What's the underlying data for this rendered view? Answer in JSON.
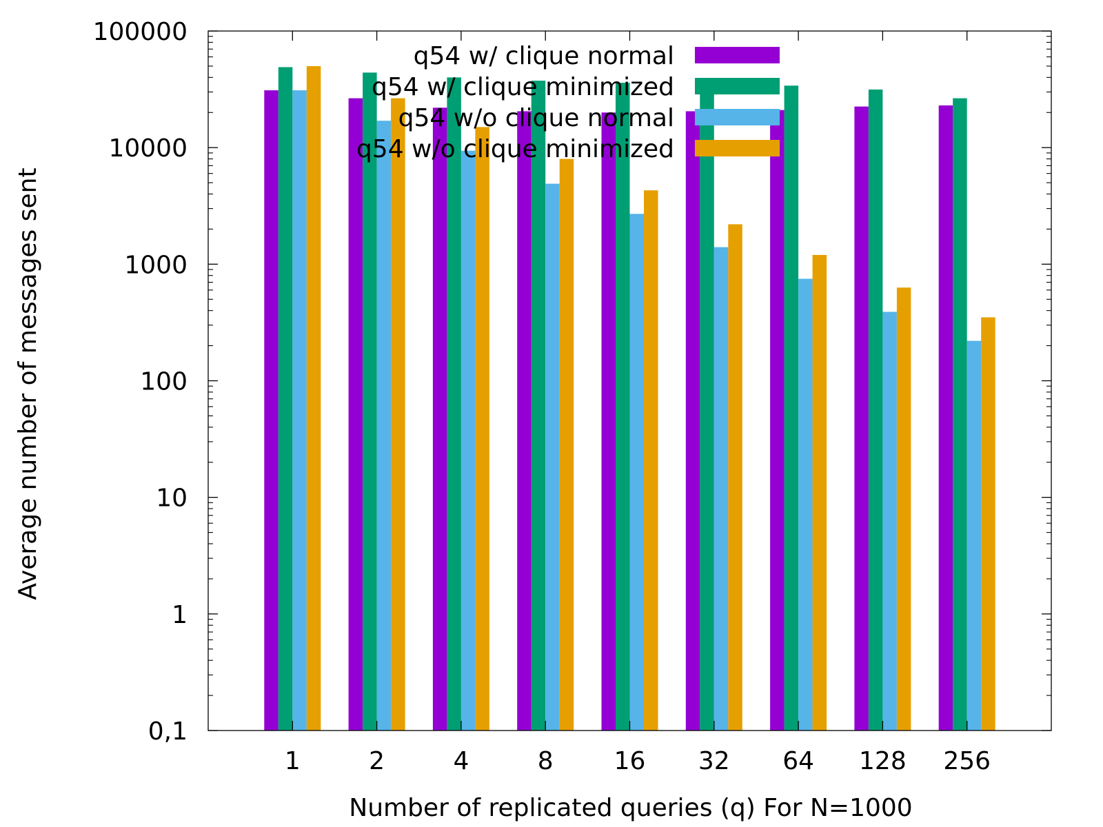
{
  "chart_data": {
    "type": "bar",
    "xlabel": "Number of replicated queries (q) For N=1000",
    "ylabel": "Average number of messages sent",
    "yscale": "log",
    "ylim": [
      0.1,
      100000
    ],
    "yticks": [
      {
        "value": 100000,
        "label": "100000"
      },
      {
        "value": 10000,
        "label": "10000"
      },
      {
        "value": 1000,
        "label": "1000"
      },
      {
        "value": 100,
        "label": "100"
      },
      {
        "value": 10,
        "label": "10"
      },
      {
        "value": 1,
        "label": "1"
      },
      {
        "value": 0.1,
        "label": "0,1"
      }
    ],
    "categories": [
      "1",
      "2",
      "4",
      "8",
      "16",
      "32",
      "64",
      "128",
      "256"
    ],
    "legend_position": "top-right",
    "series": [
      {
        "name": "q54 w/ clique normal",
        "color": "#9400d3",
        "values": [
          31000,
          26500,
          22000,
          20500,
          20000,
          20500,
          21000,
          22500,
          23000
        ]
      },
      {
        "name": "q54 w/ clique minimized",
        "color": "#009e73",
        "values": [
          49000,
          44000,
          40000,
          37500,
          36000,
          35500,
          34000,
          31500,
          26500
        ]
      },
      {
        "name": "q54 w/o clique normal",
        "color": "#56b4e9",
        "values": [
          31000,
          17000,
          9400,
          4900,
          2700,
          1400,
          750,
          390,
          220
        ]
      },
      {
        "name": "q54 w/o clique minimized",
        "color": "#e69f00",
        "values": [
          50000,
          26500,
          15000,
          8000,
          4300,
          2200,
          1200,
          630,
          350
        ]
      }
    ]
  }
}
